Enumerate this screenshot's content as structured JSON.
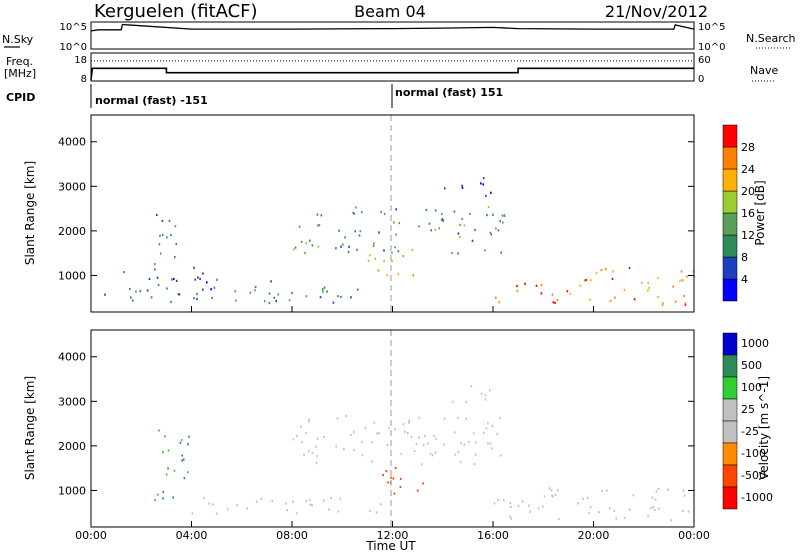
{
  "header": {
    "title_left": "Kerguelen (fitACF)",
    "title_center": "Beam 04",
    "title_right": "21/Nov/2012"
  },
  "side_labels": {
    "nsky": "N.Sky",
    "nsearch": "N.Search",
    "freq": "Freq.",
    "freq_unit": "[MHz]",
    "nave": "Nave",
    "cpid": "CPID"
  },
  "mini_ticks": {
    "nsky_top": "10^5",
    "nsky_bottom": "10^0",
    "freq_top": "18",
    "freq_bottom": "8",
    "nave_top": "60",
    "nave_bottom": "0"
  },
  "cpid_segments": [
    {
      "label": "normal (fast) -151",
      "start_hour": 0,
      "end_hour": 12
    },
    {
      "label": "normal (fast) 151",
      "start_hour": 12,
      "end_hour": 24
    }
  ],
  "colors": {
    "power": [
      "#0000ff",
      "#1f3fbf",
      "#2e8b57",
      "#5aa05a",
      "#9acd32",
      "#ffb000",
      "#ff7f00",
      "#ff0000"
    ],
    "velocity": [
      "#ff0000",
      "#ff4500",
      "#ff8c00",
      "#c0c0c0",
      "#c0c0c0",
      "#32cd32",
      "#2e8b57",
      "#0000cd"
    ],
    "ground_scatter": "#bebebe"
  },
  "chart_data": [
    {
      "type": "line",
      "panel": "N.Sky / N.Search",
      "x_range_hours": [
        0,
        24
      ],
      "ylim": [
        "10^0",
        "10^5"
      ],
      "x": [
        0,
        0.3,
        1.2,
        1.25,
        4,
        8,
        12,
        14,
        16,
        17,
        20,
        22,
        23.2,
        23.25,
        24
      ],
      "values": [
        0.7,
        0.75,
        0.75,
        0.98,
        0.78,
        0.78,
        0.8,
        0.82,
        0.85,
        0.8,
        0.78,
        0.78,
        0.78,
        0.96,
        0.78
      ]
    },
    {
      "type": "line",
      "panel": "Freq. / Nave",
      "x_range_hours": [
        0,
        24
      ],
      "freq_ylim": [
        8,
        18
      ],
      "nave_ylim": [
        0,
        60
      ],
      "series": [
        {
          "x": [
            0,
            0.05,
            3,
            3,
            17,
            17,
            24
          ],
          "values": [
            8,
            12.5,
            12.5,
            10.8,
            10.8,
            12.5,
            12.5
          ]
        },
        {
          "x": [
            0,
            24
          ],
          "values": [
            44,
            44
          ]
        }
      ]
    },
    {
      "type": "heatmap",
      "panel": "power",
      "xlabel": "",
      "ylabel": "Slant Range [km]",
      "x_range_hours": [
        0,
        24
      ],
      "ylim": [
        180,
        4600
      ],
      "yticks": [
        "1000",
        "2000",
        "3000",
        "4000"
      ],
      "colorbar_label": "Power [dB]",
      "colorbar_ticks": [
        "4",
        "8",
        "12",
        "16",
        "20",
        "24",
        "28"
      ],
      "regions": [
        {
          "x": [
            0.5,
            5
          ],
          "y": [
            350,
            1200
          ],
          "value": 8
        },
        {
          "x": [
            2.5,
            3.5
          ],
          "y": [
            700,
            2500
          ],
          "value": 10
        },
        {
          "x": [
            5,
            11
          ],
          "y": [
            400,
            900
          ],
          "value": 10
        },
        {
          "x": [
            8,
            16.5
          ],
          "y": [
            1500,
            2600
          ],
          "value": 12
        },
        {
          "x": [
            11,
            13
          ],
          "y": [
            900,
            1500
          ],
          "value": 22
        },
        {
          "x": [
            14,
            16
          ],
          "y": [
            2800,
            3300
          ],
          "value": 6
        },
        {
          "x": [
            16,
            19
          ],
          "y": [
            350,
            900
          ],
          "value": 28
        },
        {
          "x": [
            19,
            24
          ],
          "y": [
            350,
            1200
          ],
          "value": 24
        }
      ]
    },
    {
      "type": "heatmap",
      "panel": "velocity",
      "xlabel": "Time UT",
      "ylabel": "Slant Range [km]",
      "x_range_hours": [
        0,
        24
      ],
      "ylim": [
        180,
        4600
      ],
      "yticks": [
        "1000",
        "2000",
        "3000",
        "4000"
      ],
      "xticks": [
        "00:00",
        "04:00",
        "08:00",
        "12:00",
        "16:00",
        "20:00",
        "00:00"
      ],
      "colorbar_label": "Velocity [m s^-1]",
      "colorbar_ticks": [
        "1000",
        "500",
        "100",
        "25",
        "-25",
        "-100",
        "-500",
        "-1000"
      ],
      "regions": [
        {
          "x": [
            2.5,
            4
          ],
          "y": [
            800,
            2500
          ],
          "value": 100
        },
        {
          "x": [
            4,
            12
          ],
          "y": [
            500,
            900
          ],
          "value": 0
        },
        {
          "x": [
            11.5,
            13.5
          ],
          "y": [
            900,
            1600
          ],
          "value": -300
        },
        {
          "x": [
            8,
            16.5
          ],
          "y": [
            1600,
            2700
          ],
          "value": 0
        },
        {
          "x": [
            16,
            24
          ],
          "y": [
            350,
            1100
          ],
          "value": 0
        },
        {
          "x": [
            14,
            16
          ],
          "y": [
            3000,
            3400
          ],
          "value": 0
        }
      ]
    }
  ]
}
